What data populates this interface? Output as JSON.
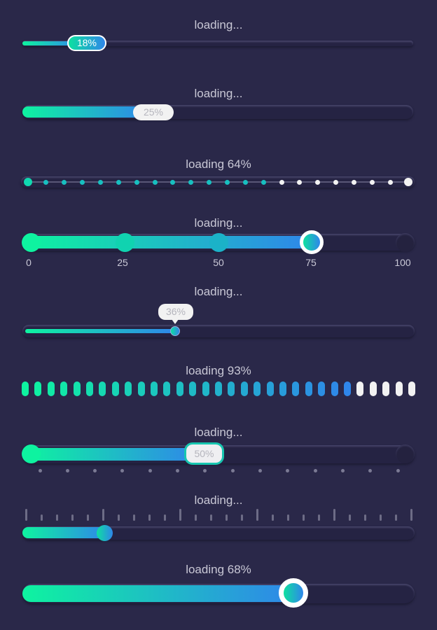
{
  "colors": {
    "background": "#2a2849",
    "gradient_start": "#0ef3a0",
    "gradient_end": "#2f86ea",
    "track": "#252343",
    "inactive": "#f2f2f2"
  },
  "bars": [
    {
      "label": "loading...",
      "value_text": "18%",
      "progress": 18
    },
    {
      "label": "loading...",
      "value_text": "25%",
      "progress": 25
    },
    {
      "label": "loading  64%",
      "progress": 64,
      "dots": 22
    },
    {
      "label": "loading...",
      "progress": 75,
      "scale": [
        "0",
        "25",
        "50",
        "75",
        "100"
      ]
    },
    {
      "label": "loading...",
      "value_text": "36%",
      "progress": 36
    },
    {
      "label": "loading   93%",
      "progress": 93,
      "segments": 31
    },
    {
      "label": "loading...",
      "value_text": "50%",
      "progress": 50
    },
    {
      "label": "loading...",
      "progress": 21
    },
    {
      "label": "loading 68%",
      "progress": 68
    }
  ]
}
